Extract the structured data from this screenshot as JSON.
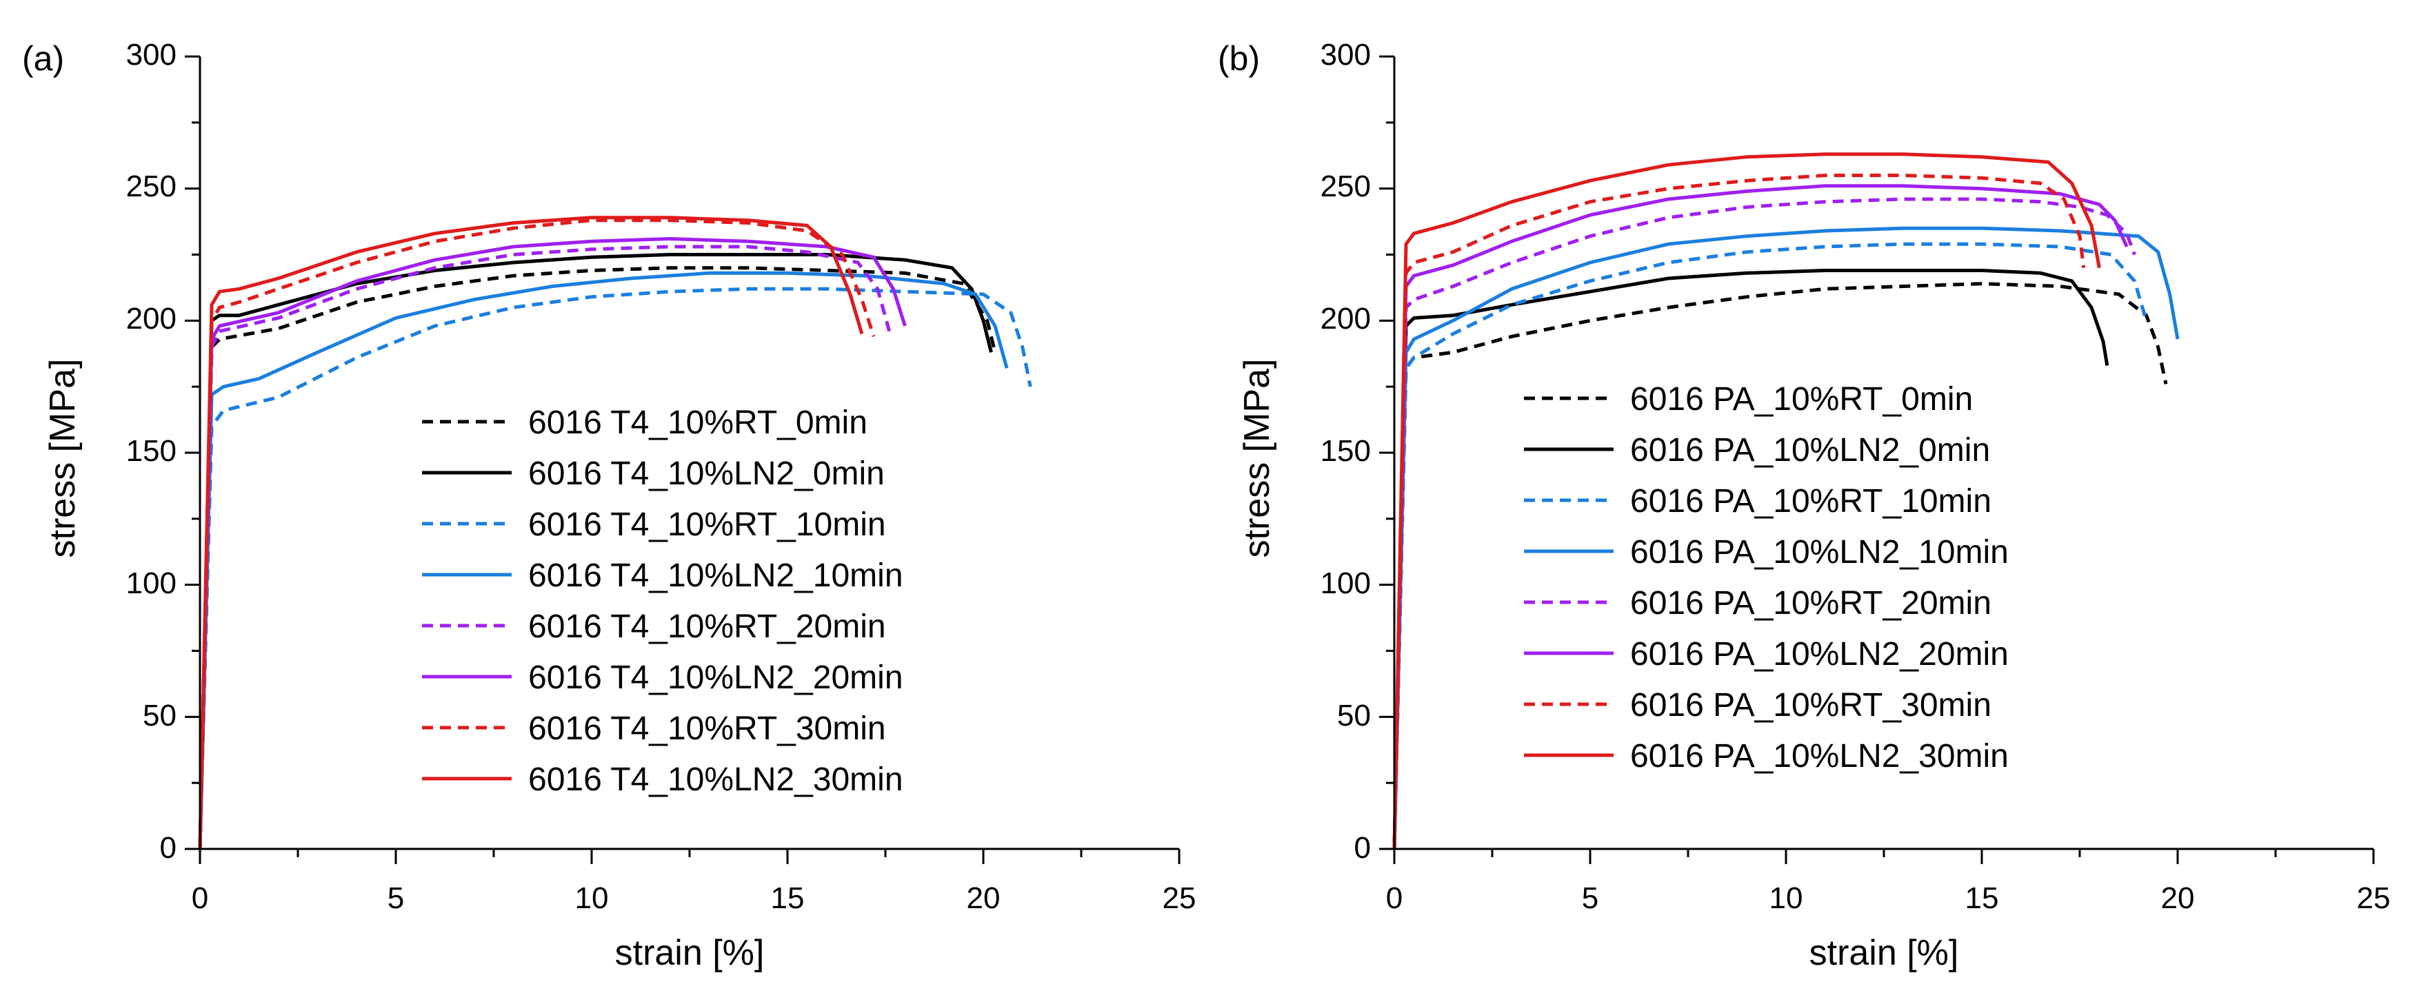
{
  "chart_data": [
    {
      "panel_label": "(a)",
      "type": "line",
      "xlabel": "strain [%]",
      "ylabel": "stress [MPa]",
      "xlim": [
        0,
        25
      ],
      "ylim": [
        0,
        300
      ],
      "xticks": [
        "0",
        "5",
        "10",
        "15",
        "20",
        "25"
      ],
      "yticks": [
        "0",
        "50",
        "100",
        "150",
        "200",
        "250",
        "300"
      ],
      "grid": false,
      "legend_position": "center-right",
      "series": [
        {
          "name": "6016 T4_10%RT_0min",
          "color": "#000000",
          "dash": true,
          "points": [
            [
              0,
              0
            ],
            [
              0.3,
              190
            ],
            [
              0.5,
              193
            ],
            [
              2,
              197
            ],
            [
              4,
              207
            ],
            [
              6,
              213
            ],
            [
              8,
              217
            ],
            [
              10,
              219
            ],
            [
              12,
              220
            ],
            [
              14,
              220
            ],
            [
              16,
              219
            ],
            [
              18,
              218
            ],
            [
              19.5,
              214
            ],
            [
              20.1,
              200
            ],
            [
              20.3,
              188
            ]
          ]
        },
        {
          "name": "6016 T4_10%LN2_0min",
          "color": "#000000",
          "dash": false,
          "points": [
            [
              0,
              0
            ],
            [
              0.3,
              200
            ],
            [
              0.5,
              202
            ],
            [
              1,
              202
            ],
            [
              2,
              206
            ],
            [
              4,
              214
            ],
            [
              6,
              219
            ],
            [
              8,
              222
            ],
            [
              10,
              224
            ],
            [
              12,
              225
            ],
            [
              14,
              225
            ],
            [
              16,
              225
            ],
            [
              18,
              223
            ],
            [
              19.2,
              220
            ],
            [
              19.7,
              212
            ],
            [
              20.0,
              200
            ],
            [
              20.2,
              188
            ]
          ]
        },
        {
          "name": "6016 T4_10%RT_10min",
          "color": "#1a7fe0",
          "dash": true,
          "points": [
            [
              0,
              0
            ],
            [
              0.3,
              160
            ],
            [
              0.6,
              166
            ],
            [
              2,
              171
            ],
            [
              4,
              186
            ],
            [
              6,
              198
            ],
            [
              8,
              205
            ],
            [
              10,
              209
            ],
            [
              12,
              211
            ],
            [
              14,
              212
            ],
            [
              16,
              212
            ],
            [
              18,
              211
            ],
            [
              20,
              210
            ],
            [
              20.7,
              203
            ],
            [
              21.0,
              190
            ],
            [
              21.2,
              175
            ]
          ]
        },
        {
          "name": "6016 T4_10%LN2_10min",
          "color": "#1a7fe0",
          "dash": false,
          "points": [
            [
              0,
              0
            ],
            [
              0.3,
              172
            ],
            [
              0.6,
              175
            ],
            [
              1.5,
              178
            ],
            [
              3,
              188
            ],
            [
              5,
              201
            ],
            [
              7,
              208
            ],
            [
              9,
              213
            ],
            [
              11,
              216
            ],
            [
              13,
              218
            ],
            [
              15,
              218
            ],
            [
              17,
              217
            ],
            [
              19,
              214
            ],
            [
              19.8,
              210
            ],
            [
              20.3,
              198
            ],
            [
              20.6,
              182
            ]
          ]
        },
        {
          "name": "6016 T4_10%RT_20min",
          "color": "#a020f0",
          "dash": true,
          "points": [
            [
              0,
              0
            ],
            [
              0.3,
              190
            ],
            [
              0.5,
              196
            ],
            [
              2,
              201
            ],
            [
              4,
              212
            ],
            [
              6,
              220
            ],
            [
              8,
              225
            ],
            [
              10,
              227
            ],
            [
              12,
              228
            ],
            [
              14,
              228
            ],
            [
              15.5,
              226
            ],
            [
              16.8,
              222
            ],
            [
              17.3,
              212
            ],
            [
              17.6,
              196
            ]
          ]
        },
        {
          "name": "6016 T4_10%LN2_20min",
          "color": "#a020f0",
          "dash": false,
          "points": [
            [
              0,
              0
            ],
            [
              0.3,
              193
            ],
            [
              0.5,
              198
            ],
            [
              2,
              203
            ],
            [
              4,
              215
            ],
            [
              6,
              223
            ],
            [
              8,
              228
            ],
            [
              10,
              230
            ],
            [
              12,
              231
            ],
            [
              14,
              230
            ],
            [
              16,
              228
            ],
            [
              17.2,
              224
            ],
            [
              17.7,
              212
            ],
            [
              18.0,
              198
            ]
          ]
        },
        {
          "name": "6016 T4_10%RT_30min",
          "color": "#e01b1b",
          "dash": true,
          "points": [
            [
              0,
              0
            ],
            [
              0.3,
              200
            ],
            [
              0.5,
              205
            ],
            [
              1,
              207
            ],
            [
              2,
              212
            ],
            [
              4,
              222
            ],
            [
              6,
              230
            ],
            [
              8,
              235
            ],
            [
              10,
              238
            ],
            [
              12,
              238
            ],
            [
              14,
              237
            ],
            [
              15.5,
              234
            ],
            [
              16.4,
              225
            ],
            [
              16.9,
              208
            ],
            [
              17.2,
              194
            ]
          ]
        },
        {
          "name": "6016 T4_10%LN2_30min",
          "color": "#e01b1b",
          "dash": false,
          "points": [
            [
              0,
              0
            ],
            [
              0.3,
              206
            ],
            [
              0.5,
              211
            ],
            [
              1,
              212
            ],
            [
              2,
              216
            ],
            [
              4,
              226
            ],
            [
              6,
              233
            ],
            [
              8,
              237
            ],
            [
              10,
              239
            ],
            [
              12,
              239
            ],
            [
              14,
              238
            ],
            [
              15.5,
              236
            ],
            [
              16.1,
              228
            ],
            [
              16.6,
              210
            ],
            [
              16.9,
              195
            ]
          ]
        }
      ]
    },
    {
      "panel_label": "(b)",
      "type": "line",
      "xlabel": "strain [%]",
      "ylabel": "stress [MPa]",
      "xlim": [
        0,
        25
      ],
      "ylim": [
        0,
        300
      ],
      "xticks": [
        "0",
        "5",
        "10",
        "15",
        "20",
        "25"
      ],
      "yticks": [
        "0",
        "50",
        "100",
        "150",
        "200",
        "250",
        "300"
      ],
      "grid": false,
      "legend_position": "center-right",
      "series": [
        {
          "name": "6016 PA_10%RT_0min",
          "color": "#000000",
          "dash": true,
          "points": [
            [
              0,
              0
            ],
            [
              0.3,
              182
            ],
            [
              0.5,
              186
            ],
            [
              1.5,
              188
            ],
            [
              3,
              194
            ],
            [
              5,
              200
            ],
            [
              7,
              205
            ],
            [
              9,
              209
            ],
            [
              11,
              212
            ],
            [
              13,
              213
            ],
            [
              15,
              214
            ],
            [
              17,
              213
            ],
            [
              18.5,
              210
            ],
            [
              19.2,
              202
            ],
            [
              19.5,
              190
            ],
            [
              19.7,
              176
            ]
          ]
        },
        {
          "name": "6016 PA_10%LN2_0min",
          "color": "#000000",
          "dash": false,
          "points": [
            [
              0,
              0
            ],
            [
              0.3,
              198
            ],
            [
              0.5,
              201
            ],
            [
              1.5,
              202
            ],
            [
              3,
              206
            ],
            [
              5,
              211
            ],
            [
              7,
              216
            ],
            [
              9,
              218
            ],
            [
              11,
              219
            ],
            [
              13,
              219
            ],
            [
              15,
              219
            ],
            [
              16.5,
              218
            ],
            [
              17.3,
              215
            ],
            [
              17.8,
              205
            ],
            [
              18.1,
              192
            ],
            [
              18.2,
              183
            ]
          ]
        },
        {
          "name": "6016 PA_10%RT_10min",
          "color": "#1a7fe0",
          "dash": true,
          "points": [
            [
              0,
              0
            ],
            [
              0.3,
              182
            ],
            [
              0.5,
              186
            ],
            [
              1.5,
              195
            ],
            [
              3,
              206
            ],
            [
              5,
              215
            ],
            [
              7,
              222
            ],
            [
              9,
              226
            ],
            [
              11,
              228
            ],
            [
              13,
              229
            ],
            [
              15,
              229
            ],
            [
              17,
              228
            ],
            [
              18.3,
              225
            ],
            [
              18.9,
              215
            ],
            [
              19.2,
              200
            ]
          ]
        },
        {
          "name": "6016 PA_10%LN2_10min",
          "color": "#1a7fe0",
          "dash": false,
          "points": [
            [
              0,
              0
            ],
            [
              0.3,
              188
            ],
            [
              0.5,
              193
            ],
            [
              1.5,
              200
            ],
            [
              3,
              212
            ],
            [
              5,
              222
            ],
            [
              7,
              229
            ],
            [
              9,
              232
            ],
            [
              11,
              234
            ],
            [
              13,
              235
            ],
            [
              15,
              235
            ],
            [
              17,
              234
            ],
            [
              19,
              232
            ],
            [
              19.5,
              226
            ],
            [
              19.8,
              210
            ],
            [
              20.0,
              193
            ]
          ]
        },
        {
          "name": "6016 PA_10%RT_20min",
          "color": "#a020f0",
          "dash": true,
          "points": [
            [
              0,
              0
            ],
            [
              0.3,
              205
            ],
            [
              0.5,
              208
            ],
            [
              1.5,
              213
            ],
            [
              3,
              222
            ],
            [
              5,
              232
            ],
            [
              7,
              239
            ],
            [
              9,
              243
            ],
            [
              11,
              245
            ],
            [
              13,
              246
            ],
            [
              15,
              246
            ],
            [
              16.5,
              245
            ],
            [
              17.5,
              243
            ],
            [
              18.2,
              240
            ],
            [
              18.7,
              233
            ],
            [
              18.9,
              225
            ]
          ]
        },
        {
          "name": "6016 PA_10%LN2_20min",
          "color": "#a020f0",
          "dash": false,
          "points": [
            [
              0,
              0
            ],
            [
              0.3,
              213
            ],
            [
              0.5,
              217
            ],
            [
              1.5,
              221
            ],
            [
              3,
              230
            ],
            [
              5,
              240
            ],
            [
              7,
              246
            ],
            [
              9,
              249
            ],
            [
              11,
              251
            ],
            [
              13,
              251
            ],
            [
              15,
              250
            ],
            [
              17,
              248
            ],
            [
              18,
              244
            ],
            [
              18.4,
              238
            ],
            [
              18.7,
              228
            ]
          ]
        },
        {
          "name": "6016 PA_10%RT_30min",
          "color": "#e01b1b",
          "dash": true,
          "points": [
            [
              0,
              0
            ],
            [
              0.3,
              218
            ],
            [
              0.5,
              222
            ],
            [
              1.5,
              226
            ],
            [
              3,
              236
            ],
            [
              5,
              245
            ],
            [
              7,
              250
            ],
            [
              9,
              253
            ],
            [
              11,
              255
            ],
            [
              13,
              255
            ],
            [
              15,
              254
            ],
            [
              16.5,
              252
            ],
            [
              17.1,
              246
            ],
            [
              17.5,
              232
            ],
            [
              17.6,
              220
            ]
          ]
        },
        {
          "name": "6016 PA_10%LN2_30min",
          "color": "#e01b1b",
          "dash": false,
          "points": [
            [
              0,
              0
            ],
            [
              0.3,
              229
            ],
            [
              0.5,
              233
            ],
            [
              1.5,
              237
            ],
            [
              3,
              245
            ],
            [
              5,
              253
            ],
            [
              7,
              259
            ],
            [
              9,
              262
            ],
            [
              11,
              263
            ],
            [
              13,
              263
            ],
            [
              15,
              262
            ],
            [
              16.7,
              260
            ],
            [
              17.3,
              252
            ],
            [
              17.8,
              236
            ],
            [
              18.0,
              220
            ]
          ]
        }
      ]
    }
  ]
}
